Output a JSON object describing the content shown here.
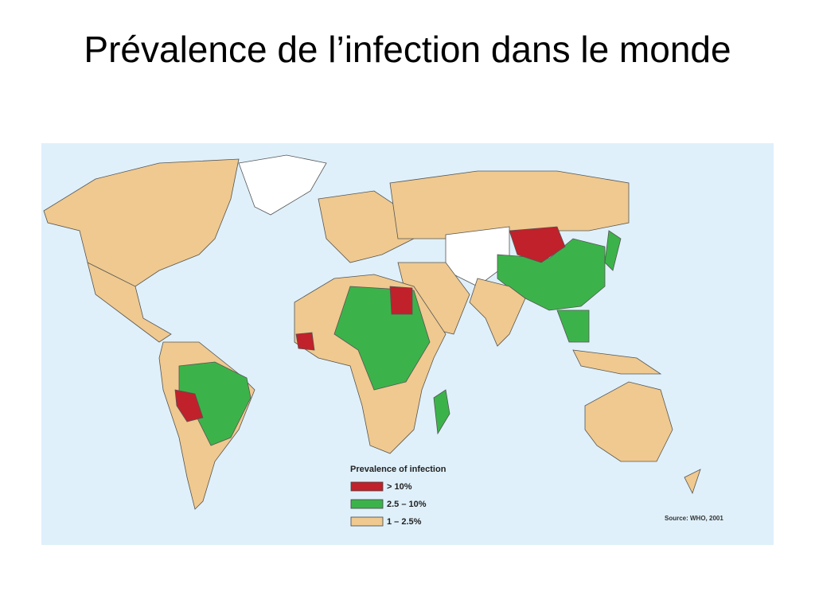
{
  "header": {
    "title": "Prévalence de l’infection dans le monde"
  },
  "legend": {
    "title": "Prevalence of infection",
    "items": [
      {
        "label": "> 10%",
        "color": "#c0212b"
      },
      {
        "label": "2.5 – 10%",
        "color": "#3cb34a"
      },
      {
        "label": "1 – 2.5%",
        "color": "#efc98f"
      }
    ]
  },
  "source": "Source: WHO, 2001"
}
